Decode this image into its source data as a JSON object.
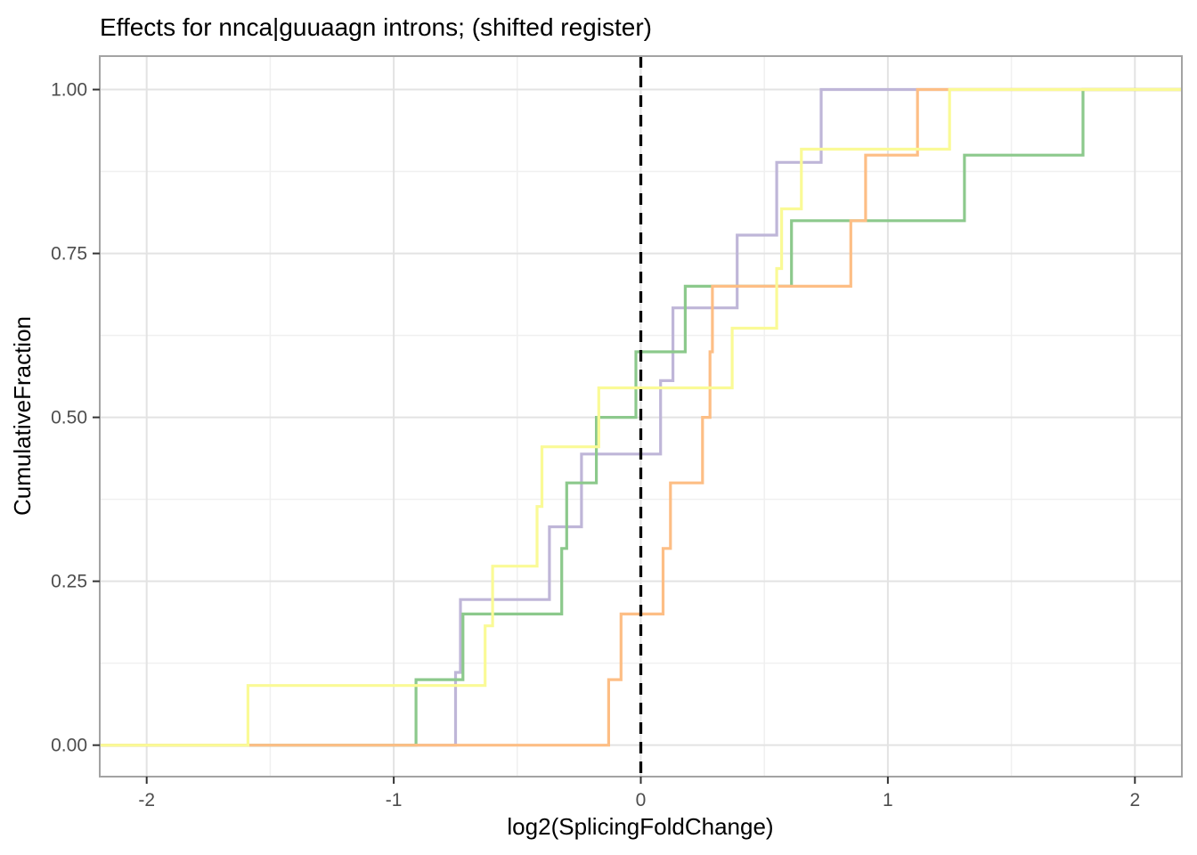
{
  "page": {
    "background": "#ffffff"
  },
  "chart_data": {
    "type": "line",
    "variant": "ecdf-step",
    "title": "Effects for nnca|guuaagn introns; (shifted register)",
    "xlabel": "log2(SplicingFoldChange)",
    "ylabel": "CumulativeFraction",
    "xlim": [
      -2.19,
      2.19
    ],
    "ylim": [
      -0.048,
      1.051
    ],
    "x_ticks": [
      {
        "value": -2,
        "label": "-2"
      },
      {
        "value": -1,
        "label": "-1"
      },
      {
        "value": 0,
        "label": "0"
      },
      {
        "value": 1,
        "label": "1"
      },
      {
        "value": 2,
        "label": "2"
      }
    ],
    "y_ticks": [
      {
        "value": 0.0,
        "label": "0.00"
      },
      {
        "value": 0.25,
        "label": "0.25"
      },
      {
        "value": 0.5,
        "label": "0.50"
      },
      {
        "value": 0.75,
        "label": "0.75"
      },
      {
        "value": 1.0,
        "label": "1.00"
      }
    ],
    "grid": {
      "major_x": [
        -2,
        -1,
        0,
        1,
        2
      ],
      "minor_x": [
        -1.5,
        -0.5,
        0.5,
        1.5
      ],
      "major_y": [
        0,
        0.25,
        0.5,
        0.75,
        1
      ],
      "minor_y": [
        0.125,
        0.375,
        0.625,
        0.875
      ],
      "major_color": "#e3e3e3",
      "minor_color": "#f0f0f0"
    },
    "reference_line": {
      "x": 0,
      "style": "dashed",
      "color": "#000000"
    },
    "legend": "none",
    "panel_border_color": "#a3a3a3",
    "tick_mark_color": "#333333",
    "series": [
      {
        "name": "purple",
        "color": "#bfb6d8",
        "points": {
          "x": [
            -0.75,
            -0.73,
            -0.37,
            -0.24,
            0.08,
            0.13,
            0.39,
            0.55,
            0.73
          ],
          "y": [
            0.111,
            0.222,
            0.333,
            0.444,
            0.556,
            0.667,
            0.778,
            0.889,
            1.0
          ]
        }
      },
      {
        "name": "green",
        "color": "#8cc98c",
        "points": {
          "x": [
            -0.91,
            -0.72,
            -0.32,
            -0.3,
            -0.18,
            -0.02,
            0.18,
            0.61,
            1.31,
            1.79
          ],
          "y": [
            0.1,
            0.2,
            0.3,
            0.4,
            0.5,
            0.6,
            0.7,
            0.8,
            0.9,
            1.0
          ]
        }
      },
      {
        "name": "orange",
        "color": "#fdbe85",
        "points": {
          "x": [
            -0.13,
            -0.08,
            0.09,
            0.12,
            0.25,
            0.28,
            0.29,
            0.85,
            0.91,
            1.12
          ],
          "y": [
            0.1,
            0.2,
            0.3,
            0.4,
            0.5,
            0.6,
            0.7,
            0.8,
            0.9,
            1.0
          ]
        }
      },
      {
        "name": "yellow",
        "color": "#fafa96",
        "points": {
          "x": [
            -1.59,
            -0.63,
            -0.6,
            -0.42,
            -0.4,
            -0.17,
            0.37,
            0.55,
            0.57,
            0.65,
            1.25
          ],
          "y": [
            0.091,
            0.182,
            0.273,
            0.364,
            0.455,
            0.545,
            0.636,
            0.727,
            0.818,
            0.909,
            1.0
          ]
        }
      }
    ]
  }
}
